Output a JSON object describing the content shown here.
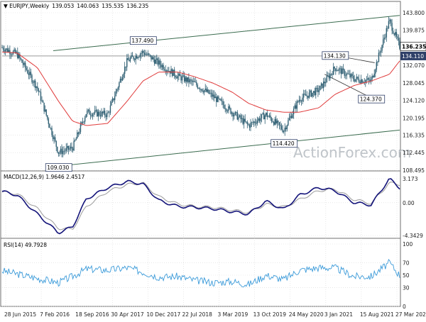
{
  "header": {
    "symbol": "EURJPY",
    "timeframe": "Weekly",
    "open": "139.053",
    "high": "140.063",
    "low": "135.535",
    "close": "136.235"
  },
  "watermark": "ActionForex.com",
  "price_panel": {
    "axis_ticks": [
      "143.800",
      "139.875",
      "136.235",
      "134.110",
      "132.070",
      "128.045",
      "124.120",
      "120.195",
      "116.335",
      "112.445",
      "108.495"
    ],
    "current_price_tag": "136.235",
    "level_tag": "134.110",
    "annotations": [
      "137.490",
      "134.130",
      "124.370",
      "114.420",
      "109.030"
    ]
  },
  "macd_panel": {
    "title": "MACD(12,26,9) 1.9646 2.4517",
    "axis_ticks": [
      "3.173",
      "0.00",
      "-4.3429"
    ]
  },
  "rsi_panel": {
    "title": "RSI(14) 49.7928",
    "axis_ticks": [
      "100",
      "70",
      "50",
      "30",
      "0"
    ]
  },
  "x_axis": {
    "labels": [
      "28 Jun 2015",
      "7 Feb 2016",
      "18 Sep 2016",
      "30 Apr 2017",
      "10 Dec 2017",
      "22 Jul 2018",
      "3 Mar 2019",
      "13 Oct 2019",
      "24 May 2020",
      "3 Jan 2021",
      "15 Aug 2021",
      "27 Mar 2022"
    ]
  },
  "colors": {
    "candles": "#2f5f73",
    "moving_average": "#e03b3b",
    "channel_lines": "#3a6b4e",
    "macd_line": "#14147a",
    "signal_line": "#9a9a9a",
    "rsi_line": "#3a9ad9",
    "tag_fill": "#2f3f68",
    "horizontal_level": "#9a9a9a"
  },
  "chart_data": [
    {
      "type": "line",
      "title": "EURJPY Weekly",
      "xlabel": "",
      "ylabel": "",
      "x": [
        "2015-06-28",
        "2015-10-01",
        "2016-02-07",
        "2016-06-20",
        "2016-09-18",
        "2016-12-15",
        "2017-04-30",
        "2017-09-01",
        "2017-12-10",
        "2018-03-20",
        "2018-07-22",
        "2018-11-01",
        "2019-03-03",
        "2019-07-01",
        "2019-10-13",
        "2020-02-01",
        "2020-05-24",
        "2020-09-01",
        "2021-01-03",
        "2021-04-15",
        "2021-08-15",
        "2021-12-01",
        "2022-03-27",
        "2022-06-01"
      ],
      "ylim": [
        108.495,
        143.8
      ],
      "grid": true,
      "series": [
        {
          "name": "",
          "values": [
            136.0,
            134.5,
            127.0,
            112.5,
            113.5,
            121.5,
            121.0,
            133.0,
            135.0,
            132.5,
            129.5,
            128.0,
            125.0,
            121.5,
            118.5,
            121.0,
            117.5,
            124.5,
            126.5,
            131.5,
            129.0,
            128.5,
            142.0,
            136.235
          ]
        },
        {
          "name": "",
          "values": [
            135.0,
            134.8,
            131.5,
            124.0,
            119.5,
            118.5,
            119.0,
            124.0,
            128.5,
            130.5,
            130.5,
            129.5,
            128.0,
            126.0,
            123.5,
            122.0,
            121.5,
            121.5,
            122.5,
            125.5,
            127.5,
            128.5,
            130.0,
            133.0
          ]
        }
      ],
      "annotations": [
        {
          "label": "137.490",
          "x": "2017-12-10",
          "y": 137.49
        },
        {
          "label": "134.130",
          "x": "2021-04-15",
          "y": 134.13
        },
        {
          "label": "124.370",
          "x": "2021-12-01",
          "y": 124.37
        },
        {
          "label": "114.420",
          "x": "2020-05-24",
          "y": 114.42
        },
        {
          "label": "109.030",
          "x": "2016-06-20",
          "y": 109.03
        }
      ]
    },
    {
      "type": "line",
      "title": "MACD(12,26,9) 1.9646 2.4517",
      "ylim": [
        -4.3429,
        3.173
      ],
      "series": [
        {
          "name": "",
          "values": [
            1.5,
            1.0,
            -1.5,
            -4.0,
            -3.2,
            0.5,
            2.0,
            2.8,
            2.5,
            0.3,
            -0.5,
            -0.6,
            -0.8,
            -1.2,
            -1.5,
            0.2,
            -0.9,
            1.0,
            2.0,
            1.6,
            0.0,
            -0.3,
            3.173,
            1.9646
          ]
        },
        {
          "name": "",
          "values": [
            1.4,
            1.2,
            -0.8,
            -3.4,
            -3.5,
            -0.5,
            1.5,
            2.4,
            2.6,
            0.8,
            -0.2,
            -0.5,
            -0.6,
            -1.0,
            -1.3,
            -0.2,
            -0.6,
            0.4,
            1.6,
            1.8,
            0.4,
            -0.1,
            2.6,
            2.4517
          ]
        }
      ]
    },
    {
      "type": "line",
      "title": "RSI(14) 49.7928",
      "ylim": [
        0,
        100
      ],
      "series": [
        {
          "name": "",
          "values": [
            57,
            52,
            45,
            38,
            48,
            60,
            58,
            62,
            55,
            47,
            48,
            42,
            38,
            40,
            35,
            50,
            43,
            58,
            62,
            62,
            48,
            48,
            70,
            49.7928
          ]
        }
      ]
    }
  ]
}
